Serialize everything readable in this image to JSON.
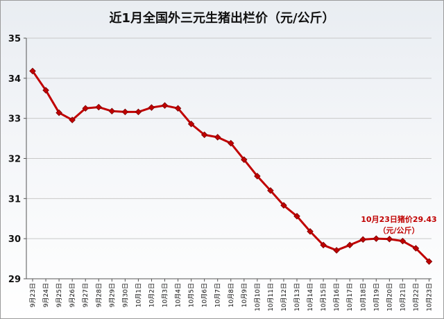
{
  "chart_data": {
    "type": "line",
    "title": "近1月全国外三元生猪出栏价（元/公斤）",
    "xlabel": "",
    "ylabel": "",
    "ylim": [
      29,
      35
    ],
    "yticks": [
      29,
      30,
      31,
      32,
      33,
      34,
      35
    ],
    "grid": true,
    "categories": [
      "9月23日",
      "9月24日",
      "9月25日",
      "9月26日",
      "9月27日",
      "9月28日",
      "9月29日",
      "9月30日",
      "10月1日",
      "10月2日",
      "10月3日",
      "10月4日",
      "10月5日",
      "10月6日",
      "10月7日",
      "10月8日",
      "10月9日",
      "10月10日",
      "10月11日",
      "10月12日",
      "10月13日",
      "10月14日",
      "10月15日",
      "10月16日",
      "10月17日",
      "10月18日",
      "10月19日",
      "10月20日",
      "10月21日",
      "10月22日",
      "10月23日"
    ],
    "series": [
      {
        "values": [
          34.18,
          33.7,
          33.14,
          32.96,
          33.25,
          33.28,
          33.18,
          33.16,
          33.16,
          33.27,
          33.32,
          33.25,
          32.86,
          32.59,
          32.53,
          32.38,
          31.97,
          31.56,
          31.2,
          30.83,
          30.56,
          30.18,
          29.84,
          29.71,
          29.84,
          29.98,
          30.0,
          29.99,
          29.94,
          29.76,
          29.43
        ],
        "color": "#c00000",
        "marker": "diamond"
      }
    ],
    "annotations": [
      {
        "text": "10月23日猪价29.43",
        "x": "10月23日",
        "y": 29.43
      },
      {
        "text": "（元/公斤）"
      }
    ]
  }
}
